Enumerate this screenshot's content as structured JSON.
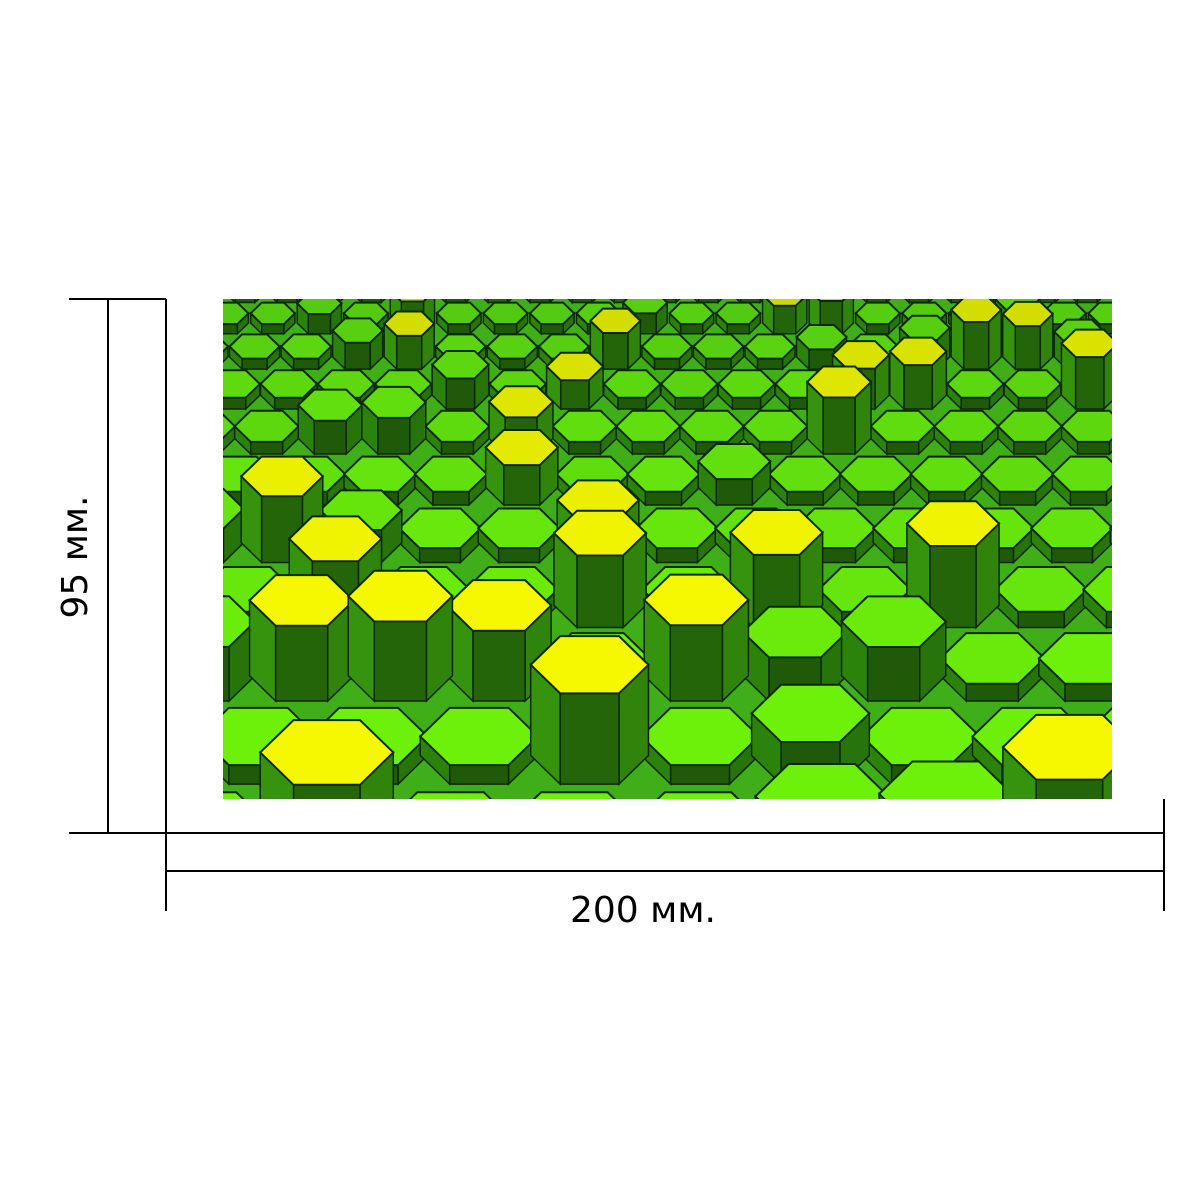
{
  "dimensions": {
    "width_label": "200 мм.",
    "height_label": "95 мм."
  },
  "artwork": {
    "description_icon": "hexagon-pattern",
    "colors": {
      "background": "#3fae18",
      "green_light": "#6df00a",
      "green_mid": "#4fc414",
      "green_dark": "#2e8a0c",
      "yellow_bright": "#f5f800",
      "yellow_dim": "#c9d400",
      "edge": "#0b2a02"
    }
  }
}
